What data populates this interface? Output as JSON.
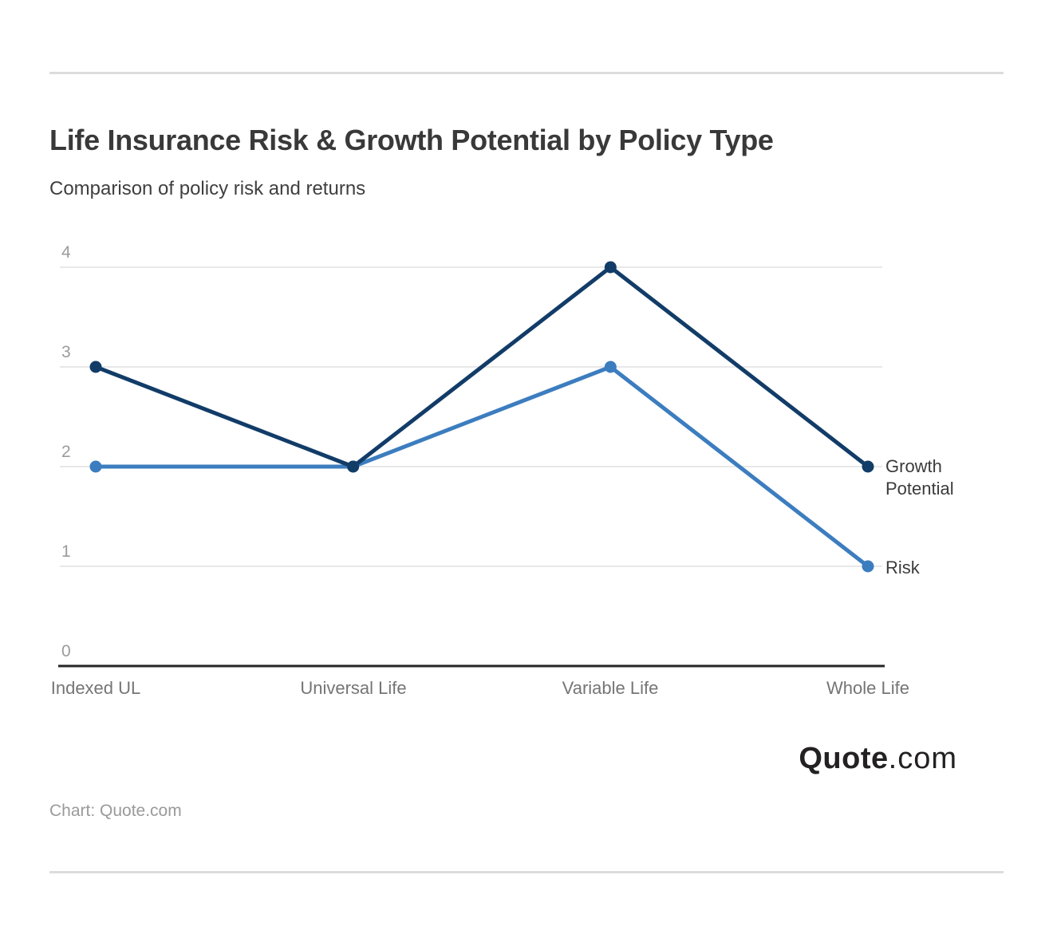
{
  "chart_data": {
    "type": "line",
    "title": "Life Insurance Risk & Growth Potential by Policy Type",
    "subtitle": "Comparison of policy risk and returns",
    "categories": [
      "Indexed UL",
      "Universal Life",
      "Variable Life",
      "Whole Life"
    ],
    "series": [
      {
        "name": "Risk",
        "color": "#3c7dbf",
        "values": [
          2,
          2,
          3,
          1
        ]
      },
      {
        "name": "Growth Potential",
        "color": "#123c68",
        "values": [
          3,
          2,
          4,
          2
        ]
      }
    ],
    "xlabel": "",
    "ylabel": "",
    "ylim": [
      0,
      4
    ],
    "yticks": [
      0,
      1,
      2,
      3,
      4
    ],
    "ytick_labels": [
      "0",
      "1",
      "2",
      "3",
      "4"
    ],
    "grid": "horizontal",
    "gridline_color": "#e8e8e8",
    "axis_color": "#252525",
    "legend_position": "end-of-line-labels"
  },
  "footer": {
    "logo_bold": "Quote",
    "logo_light": ".com",
    "credit": "Chart: Quote.com"
  }
}
